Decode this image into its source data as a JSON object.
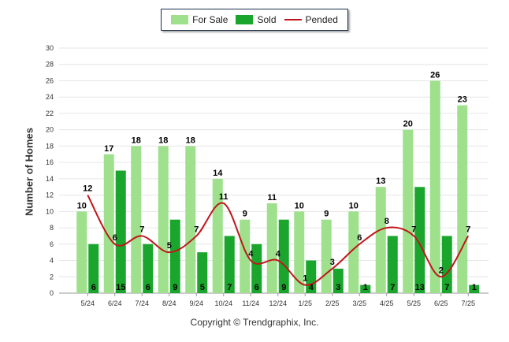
{
  "chart_data": {
    "type": "bar",
    "ylabel": "Number of Homes",
    "xlabel": "",
    "ylim": [
      0,
      30
    ],
    "yticks": [
      0,
      2,
      4,
      6,
      8,
      10,
      12,
      14,
      16,
      18,
      20,
      22,
      24,
      26,
      28,
      30
    ],
    "grid": true,
    "legend_position": "top-center",
    "categories": [
      "5/24",
      "6/24",
      "7/24",
      "8/24",
      "9/24",
      "10/24",
      "11/24",
      "12/24",
      "1/25",
      "2/25",
      "3/25",
      "4/25",
      "5/25",
      "6/25",
      "7/25"
    ],
    "series": [
      {
        "name": "For Sale",
        "kind": "bar",
        "color": "#9ee08c",
        "values": [
          10,
          17,
          18,
          18,
          18,
          14,
          9,
          11,
          10,
          9,
          10,
          13,
          20,
          26,
          23
        ]
      },
      {
        "name": "Sold",
        "kind": "bar",
        "color": "#1aa62d",
        "values": [
          6,
          15,
          6,
          9,
          5,
          7,
          6,
          9,
          4,
          3,
          1,
          7,
          13,
          7,
          1
        ]
      },
      {
        "name": "Pended",
        "kind": "line",
        "color": "#c0161b",
        "values": [
          12,
          6,
          7,
          5,
          7,
          11,
          4,
          4,
          1,
          3,
          6,
          8,
          7,
          2,
          7
        ]
      }
    ]
  },
  "copyright": "Copyright © Trendgraphix, Inc."
}
